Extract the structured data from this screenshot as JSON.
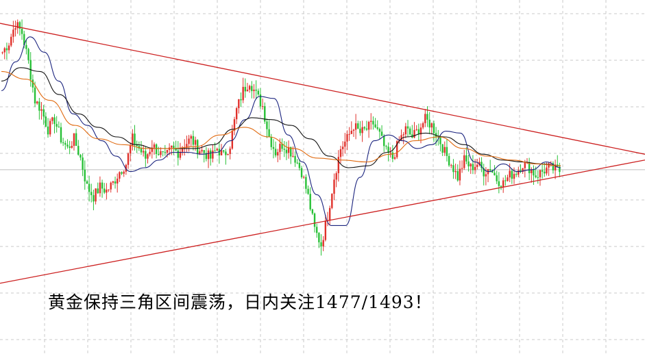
{
  "caption": "黄金保持三角区间震荡，日内关注1477/1493！",
  "colors": {
    "up": "#e0302a",
    "down": "#27c036",
    "trendline": "#cc1f1f",
    "ma_short": "#1a237e",
    "ma_long": "#111111",
    "ma_mid": "#e06a10",
    "grid": "#c8c8c8",
    "price_line": "#bdbdbd"
  },
  "chart_data": {
    "type": "candlestick",
    "title": "",
    "xlabel": "",
    "ylabel": "",
    "ylim": [
      1400,
      1560
    ],
    "grid": true,
    "current_price": 1479,
    "close_series": [
      1540,
      1545,
      1555,
      1550,
      1535,
      1515,
      1510,
      1500,
      1505,
      1495,
      1490,
      1495,
      1485,
      1470,
      1465,
      1470,
      1468,
      1472,
      1478,
      1482,
      1495,
      1490,
      1485,
      1492,
      1488,
      1485,
      1490,
      1488,
      1492,
      1495,
      1490,
      1488,
      1485,
      1490,
      1486,
      1492,
      1510,
      1520,
      1525,
      1518,
      1512,
      1496,
      1488,
      1492,
      1490,
      1485,
      1478,
      1465,
      1448,
      1440,
      1455,
      1475,
      1490,
      1495,
      1502,
      1498,
      1500,
      1503,
      1497,
      1488,
      1485,
      1494,
      1500,
      1496,
      1500,
      1505,
      1502,
      1496,
      1488,
      1482,
      1475,
      1484,
      1480,
      1482,
      1478,
      1480,
      1474,
      1472,
      1476,
      1478,
      1482,
      1480,
      1476,
      1478,
      1480,
      1479
    ],
    "moving_averages": [
      {
        "values": [
          1520,
          1535,
          1548,
          1540,
          1525,
          1508,
          1502,
          1494,
          1486,
          1478,
          1480,
          1484,
          1488,
          1488,
          1487,
          1488,
          1494,
          1505,
          1517,
          1516,
          1497,
          1483,
          1466,
          1450,
          1450,
          1475,
          1494,
          1497,
          1494,
          1490,
          1492,
          1499,
          1498,
          1483,
          1478,
          1482,
          1478,
          1479,
          1483,
          1480
        ]
      },
      {
        "values": [
          1525,
          1532,
          1530,
          1518,
          1508,
          1501,
          1496,
          1492,
          1490,
          1490,
          1490,
          1492,
          1500,
          1506,
          1505,
          1502,
          1495,
          1486,
          1480,
          1481,
          1488,
          1496,
          1498,
          1496,
          1492,
          1487,
          1484,
          1483,
          1482,
          1481
        ]
      },
      {
        "values": [
          1530,
          1526,
          1515,
          1502,
          1495,
          1492,
          1490,
          1490,
          1491,
          1497,
          1501,
          1496,
          1490,
          1485,
          1484,
          1483,
          1487,
          1494,
          1496,
          1490,
          1486,
          1484,
          1482,
          1481
        ]
      }
    ],
    "trendlines": [
      {
        "name": "",
        "from": 1555,
        "to": 1487
      },
      {
        "name": "",
        "from": 1420,
        "to": 1484
      }
    ]
  }
}
